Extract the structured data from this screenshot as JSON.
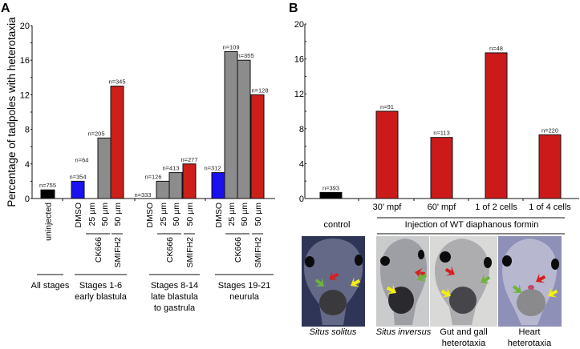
{
  "chart_data": [
    {
      "panel": "A",
      "type": "bar",
      "ylabel": "Percentage of tadpoles with heterotaxia",
      "xlabel": "",
      "ylim": [
        0,
        20
      ],
      "yticks": [
        "0",
        "4",
        "8",
        "12",
        "16",
        "20"
      ],
      "grid": false,
      "groups": [
        {
          "label_lines": [
            "All stages"
          ],
          "bars": [
            {
              "label": "uninjected",
              "treatment": "",
              "value": 1,
              "n": "n=755",
              "color": "#000000"
            }
          ]
        },
        {
          "label_lines": [
            "Stages 1-6",
            "early blastula"
          ],
          "bars": [
            {
              "label": "DMSO",
              "treatment": "",
              "value": 2,
              "n": "n=354",
              "color": "#1a10f0"
            },
            {
              "label": "25 µm",
              "treatment": "CK666",
              "value": 0,
              "n": "n=64",
              "color": "#8c8c8c"
            },
            {
              "label": "50 µm",
              "treatment": "CK666",
              "value": 7,
              "n": "n=205",
              "color": "#8c8c8c"
            },
            {
              "label": "50 µm",
              "treatment": "SMIFH2",
              "value": 13,
              "n": "n=345",
              "color": "#cc1f1a"
            }
          ]
        },
        {
          "label_lines": [
            "Stages 8-14",
            "late blastula",
            "to gastrula"
          ],
          "bars": [
            {
              "label": "DMSO",
              "treatment": "",
              "value": 0,
              "n": "n=333",
              "color": "#1a10f0"
            },
            {
              "label": "25 µm",
              "treatment": "CK666",
              "value": 2,
              "n": "n=126",
              "color": "#8c8c8c"
            },
            {
              "label": "50 µm",
              "treatment": "CK666",
              "value": 3,
              "n": "n=413",
              "color": "#8c8c8c"
            },
            {
              "label": "50 µm",
              "treatment": "SMIFH2",
              "value": 4,
              "n": "n=277",
              "color": "#cc1f1a"
            }
          ]
        },
        {
          "label_lines": [
            "Stages 19-21",
            "neurula"
          ],
          "bars": [
            {
              "label": "DMSO",
              "treatment": "",
              "value": 3,
              "n": "n=312",
              "color": "#1a10f0"
            },
            {
              "label": "25 µm",
              "treatment": "CK666",
              "value": 17,
              "n": "n=109",
              "color": "#8c8c8c"
            },
            {
              "label": "50 µm",
              "treatment": "CK666",
              "value": 16,
              "n": "n=355",
              "color": "#8c8c8c"
            },
            {
              "label": "50 µm",
              "treatment": "SMIFH2",
              "value": 12,
              "n": "n=128",
              "color": "#cc1f1a"
            }
          ]
        }
      ],
      "treatment_labels": [
        "CK666",
        "SMIFH2"
      ]
    },
    {
      "panel": "B",
      "type": "bar",
      "ylabel": "",
      "xlabel": "",
      "ylim": [
        0,
        20
      ],
      "yticks": [
        "0",
        "4",
        "8",
        "12",
        "16",
        "20"
      ],
      "grid": false,
      "categories": [
        "",
        "30' mpf",
        "60' mpf",
        "1 of 2 cells",
        "1 of 4 cells"
      ],
      "values": [
        0.7,
        10,
        7,
        16.7,
        7.3
      ],
      "n_labels": [
        "n=393",
        "n=91",
        "n=113",
        "n=48",
        "n=220"
      ],
      "colors": [
        "#000000",
        "#cc1a1a",
        "#cc1a1a",
        "#cc1a1a",
        "#cc1a1a"
      ]
    }
  ],
  "panels": {
    "a_letter": "A",
    "b_letter": "B"
  },
  "images": {
    "control_label": "control",
    "injection_label": "Injection of WT diaphanous formin",
    "captions": [
      {
        "lines": [
          "Situs solitus"
        ],
        "italic": true
      },
      {
        "lines": [
          "Situs inversus"
        ],
        "italic": true
      },
      {
        "lines": [
          "Gut and gall",
          "heterotaxia"
        ],
        "italic": false
      },
      {
        "lines": [
          "Heart",
          "heterotaxia"
        ],
        "italic": false
      }
    ],
    "arrow_colors": {
      "red": "#d42020",
      "green": "#6fb33a",
      "yellow": "#f5ee10"
    }
  }
}
